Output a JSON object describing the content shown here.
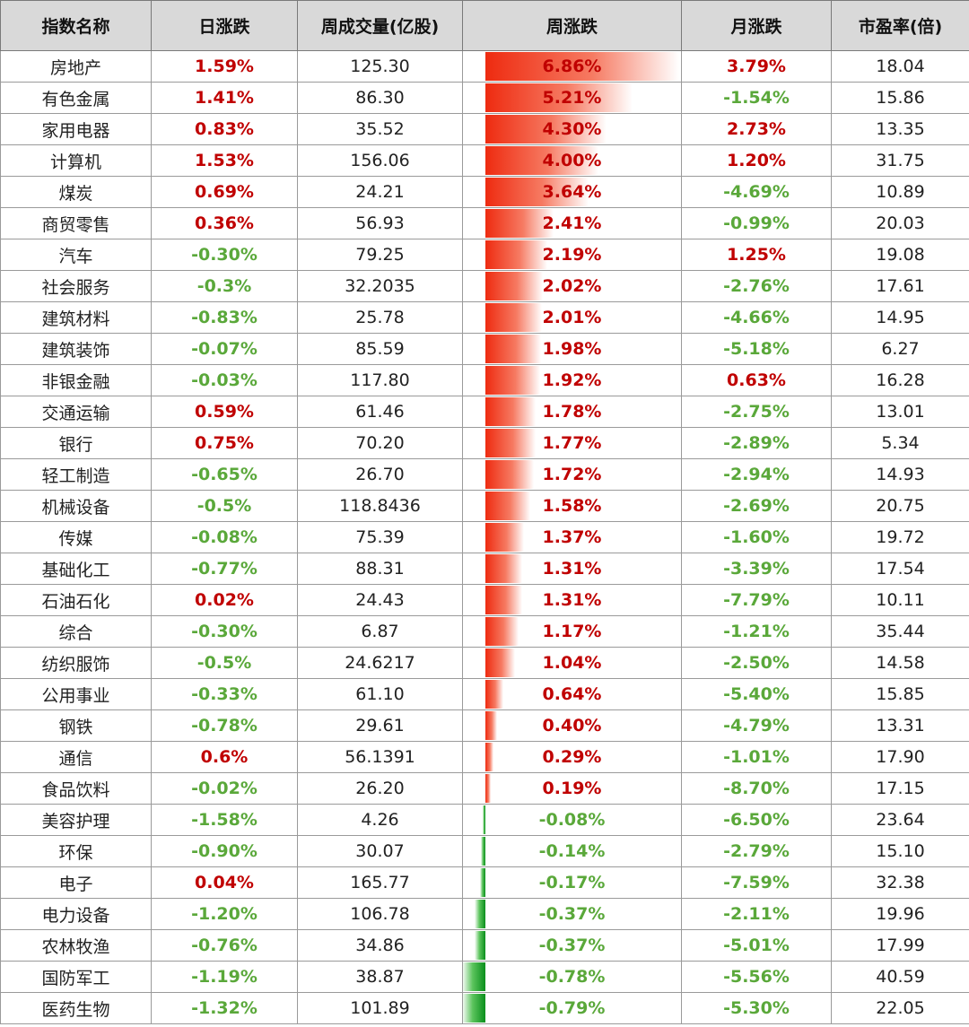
{
  "columns": [
    "指数名称",
    "日涨跌",
    "周成交量(亿股)",
    "周涨跌",
    "月涨跌",
    "市盈率(倍)"
  ],
  "rows": [
    {
      "name": "房地产",
      "daily": "1.59%",
      "volume": "125.30",
      "weekly": "6.86%",
      "weekly_value": 6.86,
      "monthly": "3.79%",
      "pe": "18.04"
    },
    {
      "name": "有色金属",
      "daily": "1.41%",
      "volume": "86.30",
      "weekly": "5.21%",
      "weekly_value": 5.21,
      "monthly": "-1.54%",
      "pe": "15.86"
    },
    {
      "name": "家用电器",
      "daily": "0.83%",
      "volume": "35.52",
      "weekly": "4.30%",
      "weekly_value": 4.3,
      "monthly": "2.73%",
      "pe": "13.35"
    },
    {
      "name": "计算机",
      "daily": "1.53%",
      "volume": "156.06",
      "weekly": "4.00%",
      "weekly_value": 4.0,
      "monthly": "1.20%",
      "pe": "31.75"
    },
    {
      "name": "煤炭",
      "daily": "0.69%",
      "volume": "24.21",
      "weekly": "3.64%",
      "weekly_value": 3.64,
      "monthly": "-4.69%",
      "pe": "10.89"
    },
    {
      "name": "商贸零售",
      "daily": "0.36%",
      "volume": "56.93",
      "weekly": "2.41%",
      "weekly_value": 2.41,
      "monthly": "-0.99%",
      "pe": "20.03"
    },
    {
      "name": "汽车",
      "daily": "-0.30%",
      "volume": "79.25",
      "weekly": "2.19%",
      "weekly_value": 2.19,
      "monthly": "1.25%",
      "pe": "19.08"
    },
    {
      "name": "社会服务",
      "daily": "-0.3%",
      "volume": "32.2035",
      "weekly": "2.02%",
      "weekly_value": 2.02,
      "monthly": "-2.76%",
      "pe": "17.61"
    },
    {
      "name": "建筑材料",
      "daily": "-0.83%",
      "volume": "25.78",
      "weekly": "2.01%",
      "weekly_value": 2.01,
      "monthly": "-4.66%",
      "pe": "14.95"
    },
    {
      "name": "建筑装饰",
      "daily": "-0.07%",
      "volume": "85.59",
      "weekly": "1.98%",
      "weekly_value": 1.98,
      "monthly": "-5.18%",
      "pe": "6.27"
    },
    {
      "name": "非银金融",
      "daily": "-0.03%",
      "volume": "117.80",
      "weekly": "1.92%",
      "weekly_value": 1.92,
      "monthly": "0.63%",
      "pe": "16.28"
    },
    {
      "name": "交通运输",
      "daily": "0.59%",
      "volume": "61.46",
      "weekly": "1.78%",
      "weekly_value": 1.78,
      "monthly": "-2.75%",
      "pe": "13.01"
    },
    {
      "name": "银行",
      "daily": "0.75%",
      "volume": "70.20",
      "weekly": "1.77%",
      "weekly_value": 1.77,
      "monthly": "-2.89%",
      "pe": "5.34"
    },
    {
      "name": "轻工制造",
      "daily": "-0.65%",
      "volume": "26.70",
      "weekly": "1.72%",
      "weekly_value": 1.72,
      "monthly": "-2.94%",
      "pe": "14.93"
    },
    {
      "name": "机械设备",
      "daily": "-0.5%",
      "volume": "118.8436",
      "weekly": "1.58%",
      "weekly_value": 1.58,
      "monthly": "-2.69%",
      "pe": "20.75"
    },
    {
      "name": "传媒",
      "daily": "-0.08%",
      "volume": "75.39",
      "weekly": "1.37%",
      "weekly_value": 1.37,
      "monthly": "-1.60%",
      "pe": "19.72"
    },
    {
      "name": "基础化工",
      "daily": "-0.77%",
      "volume": "88.31",
      "weekly": "1.31%",
      "weekly_value": 1.31,
      "monthly": "-3.39%",
      "pe": "17.54"
    },
    {
      "name": "石油石化",
      "daily": "0.02%",
      "volume": "24.43",
      "weekly": "1.31%",
      "weekly_value": 1.31,
      "monthly": "-7.79%",
      "pe": "10.11"
    },
    {
      "name": "综合",
      "daily": "-0.30%",
      "volume": "6.87",
      "weekly": "1.17%",
      "weekly_value": 1.17,
      "monthly": "-1.21%",
      "pe": "35.44"
    },
    {
      "name": "纺织服饰",
      "daily": "-0.5%",
      "volume": "24.6217",
      "weekly": "1.04%",
      "weekly_value": 1.04,
      "monthly": "-2.50%",
      "pe": "14.58"
    },
    {
      "name": "公用事业",
      "daily": "-0.33%",
      "volume": "61.10",
      "weekly": "0.64%",
      "weekly_value": 0.64,
      "monthly": "-5.40%",
      "pe": "15.85"
    },
    {
      "name": "钢铁",
      "daily": "-0.78%",
      "volume": "29.61",
      "weekly": "0.40%",
      "weekly_value": 0.4,
      "monthly": "-4.79%",
      "pe": "13.31"
    },
    {
      "name": "通信",
      "daily": "0.6%",
      "volume": "56.1391",
      "weekly": "0.29%",
      "weekly_value": 0.29,
      "monthly": "-1.01%",
      "pe": "17.90"
    },
    {
      "name": "食品饮料",
      "daily": "-0.02%",
      "volume": "26.20",
      "weekly": "0.19%",
      "weekly_value": 0.19,
      "monthly": "-8.70%",
      "pe": "17.15"
    },
    {
      "name": "美容护理",
      "daily": "-1.58%",
      "volume": "4.26",
      "weekly": "-0.08%",
      "weekly_value": -0.08,
      "monthly": "-6.50%",
      "pe": "23.64"
    },
    {
      "name": "环保",
      "daily": "-0.90%",
      "volume": "30.07",
      "weekly": "-0.14%",
      "weekly_value": -0.14,
      "monthly": "-2.79%",
      "pe": "15.10"
    },
    {
      "name": "电子",
      "daily": "0.04%",
      "volume": "165.77",
      "weekly": "-0.17%",
      "weekly_value": -0.17,
      "monthly": "-7.59%",
      "pe": "32.38"
    },
    {
      "name": "电力设备",
      "daily": "-1.20%",
      "volume": "106.78",
      "weekly": "-0.37%",
      "weekly_value": -0.37,
      "monthly": "-2.11%",
      "pe": "19.96"
    },
    {
      "name": "农林牧渔",
      "daily": "-0.76%",
      "volume": "34.86",
      "weekly": "-0.37%",
      "weekly_value": -0.37,
      "monthly": "-5.01%",
      "pe": "17.99"
    },
    {
      "name": "国防军工",
      "daily": "-1.19%",
      "volume": "38.87",
      "weekly": "-0.78%",
      "weekly_value": -0.78,
      "monthly": "-5.56%",
      "pe": "40.59"
    },
    {
      "name": "医药生物",
      "daily": "-1.32%",
      "volume": "101.89",
      "weekly": "-0.79%",
      "weekly_value": -0.79,
      "monthly": "-5.30%",
      "pe": "22.05"
    }
  ],
  "colors": {
    "positive_text": "#c00000",
    "negative_text": "#5aa83a",
    "positive_bar": "#ee2b10",
    "negative_bar": "#0a8f1c",
    "header_bg": "#d9d9d9"
  }
}
